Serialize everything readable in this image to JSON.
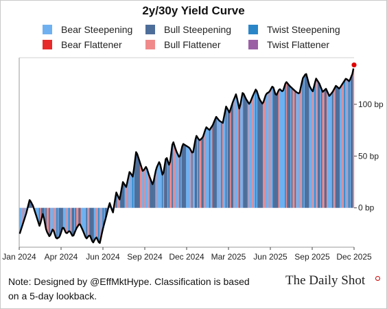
{
  "title": "2y/30y Yield Curve",
  "legend": [
    {
      "label": "Bear Steepening",
      "color": "#6fb1f0"
    },
    {
      "label": "Bull Steepening",
      "color": "#4e6e9a"
    },
    {
      "label": "Twist Steepening",
      "color": "#2b86c8"
    },
    {
      "label": "Bear Flattener",
      "color": "#e82a2a"
    },
    {
      "label": "Bull Flattener",
      "color": "#f08a8a"
    },
    {
      "label": "Twist Flattener",
      "color": "#9b5fa6"
    }
  ],
  "note": {
    "line1": "Note: Designed by @EffMktHype. Classification is based",
    "line2": "on a 5-day lookback."
  },
  "brand": "The Daily Shot",
  "chart_data": {
    "type": "area",
    "title": "2y/30y Yield Curve",
    "y_unit": "bp",
    "ylim": [
      -38,
      145
    ],
    "y_ticks": [
      {
        "value": 0,
        "label": "0 bp"
      },
      {
        "value": 50,
        "label": "50 bp"
      },
      {
        "value": 100,
        "label": "100 bp"
      }
    ],
    "x_ticks": [
      "Jan 2024",
      "Apr 2024",
      "Jun 2024",
      "Sep 2024",
      "Dec 2024",
      "Mar 2025",
      "Jun 2025",
      "Sep 2025",
      "Dec 2025"
    ],
    "grid": false,
    "legend_position": "top",
    "end_marker_color": "#e00000",
    "series": [
      {
        "x": [
          "2024-01-02",
          "2024-01-09",
          "2024-01-16",
          "2024-01-23",
          "2024-01-30",
          "2024-02-06",
          "2024-02-13",
          "2024-02-20",
          "2024-02-27",
          "2024-03-05",
          "2024-03-12",
          "2024-03-19",
          "2024-03-26",
          "2024-04-02",
          "2024-04-09",
          "2024-04-16",
          "2024-04-23",
          "2024-04-30",
          "2024-05-07",
          "2024-05-14",
          "2024-05-21",
          "2024-05-28",
          "2024-06-04",
          "2024-06-11",
          "2024-06-18",
          "2024-06-25",
          "2024-07-02",
          "2024-07-09",
          "2024-07-16",
          "2024-07-23",
          "2024-07-30",
          "2024-08-06",
          "2024-08-13",
          "2024-08-20",
          "2024-08-27",
          "2024-09-03",
          "2024-09-10",
          "2024-09-17",
          "2024-09-24",
          "2024-10-01",
          "2024-10-08",
          "2024-10-15",
          "2024-10-22",
          "2024-10-29",
          "2024-11-05",
          "2024-11-12",
          "2024-11-19",
          "2024-11-26",
          "2024-12-03",
          "2024-12-10",
          "2024-12-17",
          "2024-12-24",
          "2024-12-31",
          "2025-01-07",
          "2025-01-14",
          "2025-01-21",
          "2025-01-28",
          "2025-02-04",
          "2025-02-11",
          "2025-02-18",
          "2025-02-25",
          "2025-03-04",
          "2025-03-11",
          "2025-03-18",
          "2025-03-25",
          "2025-04-01",
          "2025-04-08",
          "2025-04-15",
          "2025-04-22",
          "2025-04-29",
          "2025-05-06",
          "2025-05-13",
          "2025-05-20",
          "2025-05-27",
          "2025-06-03",
          "2025-06-10",
          "2025-06-17",
          "2025-06-24",
          "2025-07-01",
          "2025-07-08",
          "2025-07-15",
          "2025-07-22",
          "2025-07-29",
          "2025-08-05",
          "2025-08-12",
          "2025-08-19",
          "2025-08-26",
          "2025-09-02",
          "2025-09-09",
          "2025-09-16",
          "2025-09-23",
          "2025-09-30",
          "2025-10-07",
          "2025-10-14",
          "2025-10-21",
          "2025-10-28",
          "2025-11-04",
          "2025-11-11",
          "2025-11-18",
          "2025-11-25",
          "2025-12-02",
          "2025-12-05"
        ],
        "values": [
          -25,
          -15,
          -5,
          8,
          2,
          -8,
          -18,
          -5,
          -22,
          -28,
          -20,
          -30,
          -28,
          -18,
          -25,
          -22,
          -28,
          -20,
          -15,
          -22,
          -30,
          -26,
          -34,
          -28,
          -35,
          -20,
          -8,
          5,
          -5,
          15,
          8,
          25,
          20,
          35,
          30,
          55,
          45,
          35,
          40,
          30,
          22,
          38,
          45,
          30,
          50,
          40,
          65,
          55,
          48,
          62,
          60,
          58,
          52,
          70,
          65,
          68,
          78,
          75,
          80,
          88,
          84,
          82,
          98,
          92,
          102,
          110,
          95,
          112,
          105,
          100,
          108,
          115,
          105,
          100,
          110,
          112,
          118,
          108,
          115,
          112,
          122,
          118,
          115,
          112,
          110,
          125,
          130,
          118,
          112,
          125,
          120,
          112,
          115,
          108,
          112,
          118,
          115,
          120,
          125,
          122,
          130,
          138
        ]
      }
    ]
  }
}
